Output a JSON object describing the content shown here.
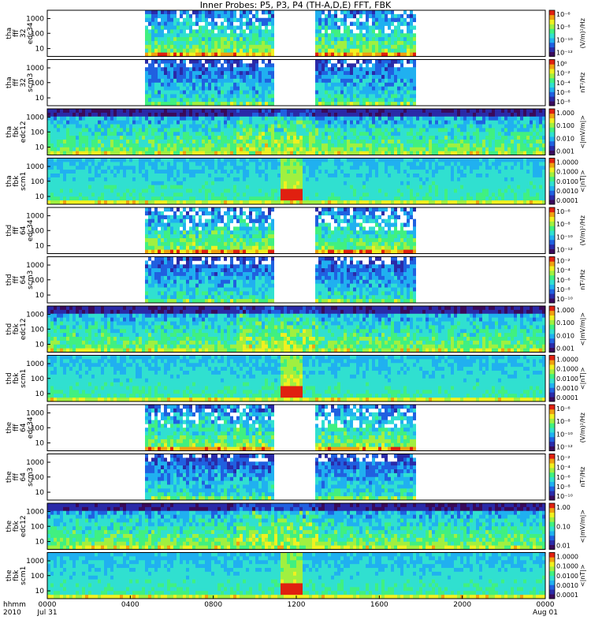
{
  "chart_data": {
    "type": "heatmap",
    "title": "Inner Probes: P5, P3, P4 (TH-A,D,E) FFT, FBK",
    "x_row_label": "hhmm",
    "x_row_label_2": "2010",
    "x_ticks": [
      {
        "t": 0,
        "label": "0000",
        "sub": "Jul 31"
      },
      {
        "t": 4,
        "label": "0400",
        "sub": ""
      },
      {
        "t": 8,
        "label": "0800",
        "sub": ""
      },
      {
        "t": 12,
        "label": "1200",
        "sub": ""
      },
      {
        "t": 16,
        "label": "1600",
        "sub": ""
      },
      {
        "t": 20,
        "label": "2000",
        "sub": ""
      },
      {
        "t": 24,
        "label": "0000",
        "sub": "Aug 01"
      }
    ],
    "xlim": [
      0,
      24
    ],
    "panels": [
      {
        "probe": "tha",
        "kind": "fff_32",
        "channel": "edc34",
        "type": "fft_e",
        "yticks": [
          "1000",
          "100",
          "10"
        ],
        "cb_ticks": [
          "10⁻⁶",
          "10⁻⁸",
          "10⁻¹⁰",
          "10⁻¹²"
        ],
        "unit": "(V/m)²/Hz",
        "data_windows": [
          [
            4.6,
            10.9
          ],
          [
            12.9,
            17.7
          ]
        ]
      },
      {
        "probe": "tha",
        "kind": "fff_32",
        "channel": "scm3",
        "type": "fft_b",
        "yticks": [
          "1000",
          "100",
          "10"
        ],
        "cb_ticks": [
          "10⁰",
          "10⁻²",
          "10⁻⁴",
          "10⁻⁶",
          "10⁻⁸"
        ],
        "unit": "nT²/Hz",
        "data_windows": [
          [
            4.6,
            10.9
          ],
          [
            12.9,
            17.7
          ]
        ]
      },
      {
        "probe": "tha",
        "kind": "fbk",
        "channel": "edc12",
        "type": "fbk_e",
        "yticks": [
          "1000",
          "100",
          "10"
        ],
        "cb_ticks": [
          "1.000",
          "0.100",
          "0.010",
          "0.001"
        ],
        "unit": "<|mV/m|>",
        "data_windows": [
          [
            0,
            24
          ]
        ]
      },
      {
        "probe": "tha",
        "kind": "fbk",
        "channel": "scm1",
        "type": "fbk_b",
        "yticks": [
          "1000",
          "100",
          "10"
        ],
        "cb_ticks": [
          "1.0000",
          "0.1000",
          "0.0100",
          "0.0010",
          "0.0001"
        ],
        "unit": "<|nT|>",
        "data_windows": [
          [
            0,
            24
          ]
        ]
      },
      {
        "probe": "thd",
        "kind": "fff_64",
        "channel": "edc34",
        "type": "fft_e",
        "yticks": [
          "1000",
          "100",
          "10"
        ],
        "cb_ticks": [
          "10⁻⁶",
          "10⁻⁸",
          "10⁻¹⁰",
          "10⁻¹²"
        ],
        "unit": "(V/m)²/Hz",
        "data_windows": [
          [
            4.6,
            10.9
          ],
          [
            12.9,
            17.7
          ]
        ]
      },
      {
        "probe": "thd",
        "kind": "fff_64",
        "channel": "scm3",
        "type": "fft_b",
        "yticks": [
          "1000",
          "100",
          "10"
        ],
        "cb_ticks": [
          "10⁻²",
          "10⁻⁴",
          "10⁻⁶",
          "10⁻⁸",
          "10⁻¹⁰"
        ],
        "unit": "nT²/Hz",
        "data_windows": [
          [
            4.6,
            10.9
          ],
          [
            12.9,
            17.7
          ]
        ]
      },
      {
        "probe": "thd",
        "kind": "fbk",
        "channel": "edc12",
        "type": "fbk_e",
        "yticks": [
          "1000",
          "100",
          "10"
        ],
        "cb_ticks": [
          "1.000",
          "0.100",
          "0.010",
          "0.001"
        ],
        "unit": "<|mV/m|>",
        "data_windows": [
          [
            0,
            24
          ]
        ]
      },
      {
        "probe": "thd",
        "kind": "fbk",
        "channel": "scm1",
        "type": "fbk_b",
        "yticks": [
          "1000",
          "100",
          "10"
        ],
        "cb_ticks": [
          "1.0000",
          "0.1000",
          "0.0100",
          "0.0010",
          "0.0001"
        ],
        "unit": "<|nT|>",
        "data_windows": [
          [
            0,
            24
          ]
        ]
      },
      {
        "probe": "the",
        "kind": "fff_64",
        "channel": "edc34",
        "type": "fft_e",
        "yticks": [
          "1000",
          "100",
          "10"
        ],
        "cb_ticks": [
          "10⁻⁶",
          "10⁻⁸",
          "10⁻¹⁰",
          "10⁻¹²"
        ],
        "unit": "(V/m)²/Hz",
        "data_windows": [
          [
            4.6,
            10.9
          ],
          [
            12.9,
            17.7
          ]
        ]
      },
      {
        "probe": "the",
        "kind": "fff_64",
        "channel": "scm3",
        "type": "fft_b",
        "yticks": [
          "1000",
          "100",
          "10"
        ],
        "cb_ticks": [
          "10⁻²",
          "10⁻⁴",
          "10⁻⁶",
          "10⁻⁸",
          "10⁻¹⁰"
        ],
        "unit": "nT²/Hz",
        "data_windows": [
          [
            4.6,
            10.9
          ],
          [
            12.9,
            17.7
          ]
        ]
      },
      {
        "probe": "the",
        "kind": "fbk",
        "channel": "edc12",
        "type": "fbk_e",
        "yticks": [
          "1000",
          "100",
          "10"
        ],
        "cb_ticks": [
          "1.00",
          "0.10",
          "0.01"
        ],
        "unit": "<|mV/m|>",
        "data_windows": [
          [
            0,
            24
          ]
        ]
      },
      {
        "probe": "the",
        "kind": "fbk",
        "channel": "scm1",
        "type": "fbk_b",
        "yticks": [
          "1000",
          "100",
          "10"
        ],
        "cb_ticks": [
          "1.0000",
          "0.1000",
          "0.0100",
          "0.0010",
          "0.0001"
        ],
        "unit": "<|nT|>",
        "data_windows": [
          [
            0,
            24
          ]
        ]
      }
    ],
    "colormap": [
      "#3a0a5a",
      "#2a2aa8",
      "#2060e0",
      "#20b0f0",
      "#30e0d0",
      "#40f080",
      "#a0f040",
      "#f0f020",
      "#f0a010",
      "#e02010"
    ]
  }
}
